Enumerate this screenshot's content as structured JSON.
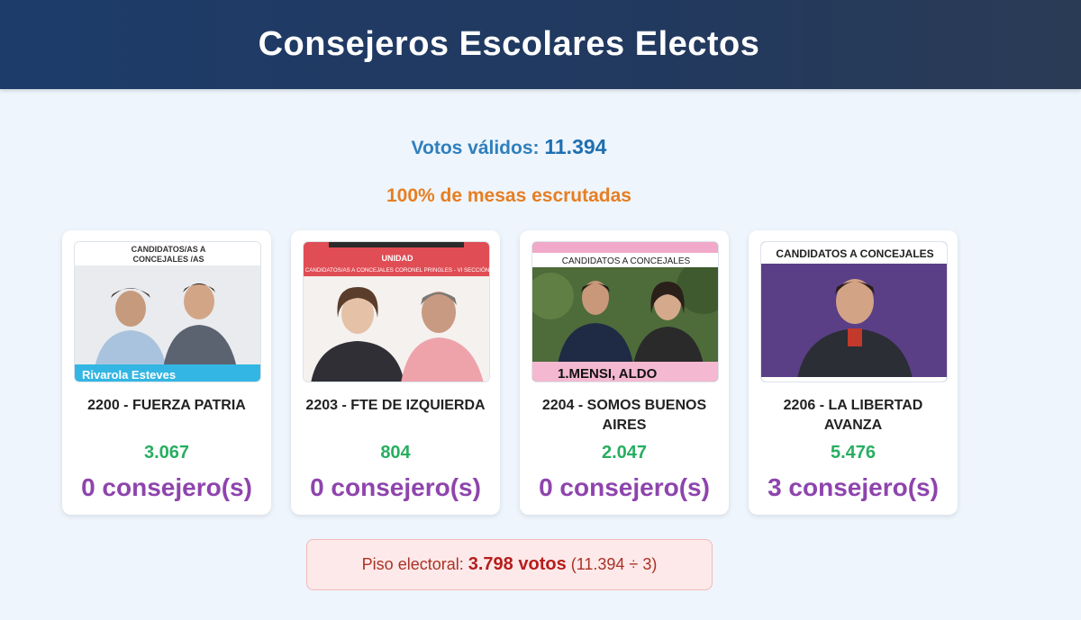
{
  "header": {
    "title": "Consejeros Escolares Electos"
  },
  "summary": {
    "votos_label": "Votos válidos:",
    "votos_value": "11.394",
    "mesas_text": "100% de mesas escrutadas"
  },
  "cards": [
    {
      "banner_top": "CANDIDATOS/AS A",
      "banner_sub": "CONCEJALES /AS",
      "banner_bottom": "Rivarola Esteves",
      "party": "2200 - FUERZA PATRIA",
      "votes": "3.067",
      "seats": "0 consejero(s)"
    },
    {
      "banner_top": "UNIDAD",
      "banner_sub": "CANDIDATOS/AS A CONCEJALES CORONEL PRINGLES - VI SECCIÓN",
      "party": "2203 - FTE DE IZQUIERDA",
      "votes": "804",
      "seats": "0 consejero(s)"
    },
    {
      "banner_top": "CANDIDATOS A CONCEJALES",
      "banner_bottom": "1.MENSI, ALDO",
      "party": "2204 - SOMOS BUENOS AIRES",
      "votes": "2.047",
      "seats": "0 consejero(s)"
    },
    {
      "banner_top": "CANDIDATOS A CONCEJALES",
      "party": "2206 - LA LIBERTAD AVANZA",
      "votes": "5.476",
      "seats": "3 consejero(s)"
    }
  ],
  "piso": {
    "label": "Piso electoral:",
    "value": "3.798 votos",
    "formula": "(11.394 ÷ 3)"
  },
  "colors": {
    "header_bg": "#1d3c6a",
    "votes": "#27ae60",
    "seats": "#8e44ad",
    "mesas": "#e67e22"
  }
}
